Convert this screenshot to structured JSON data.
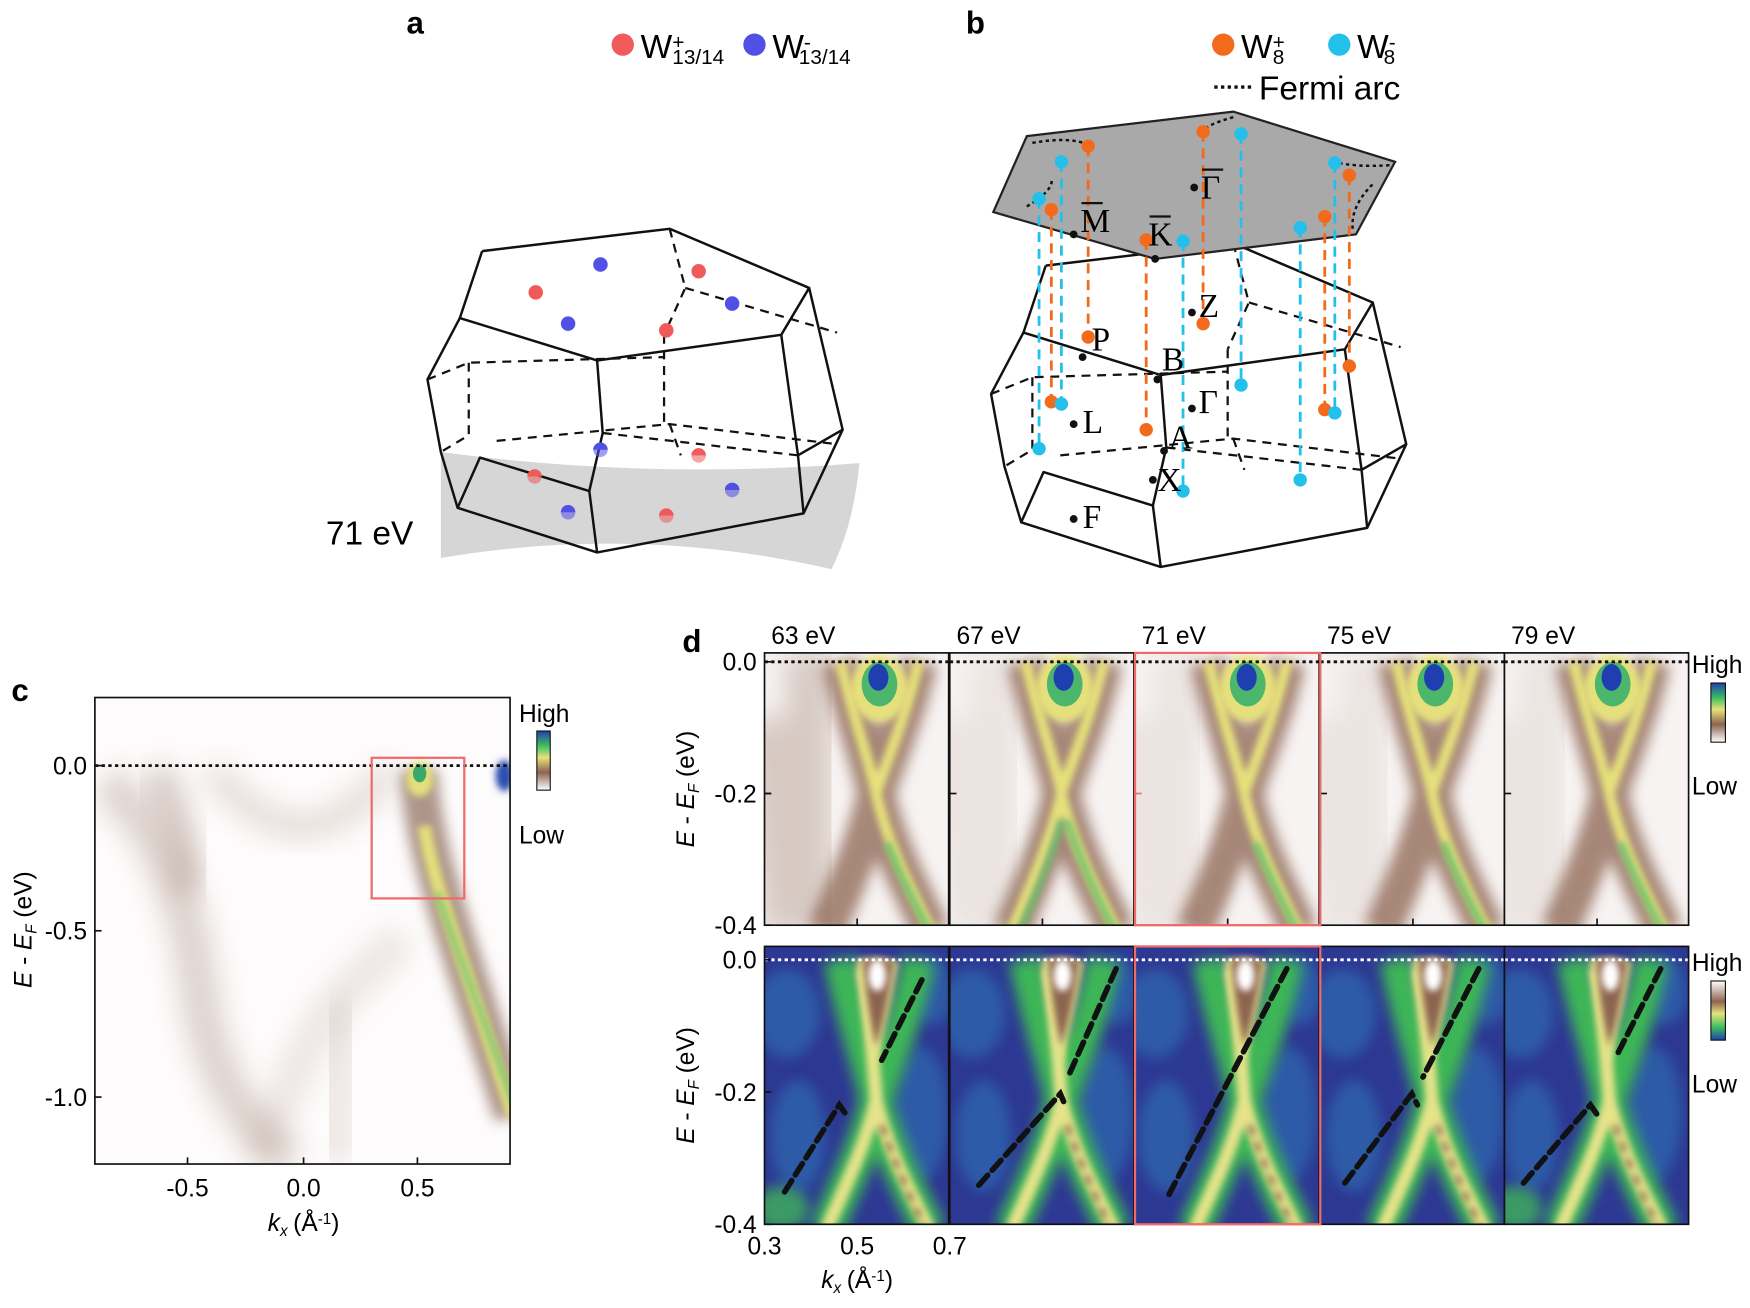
{
  "panel_a": {
    "label": "a",
    "legend": [
      {
        "symbol": "W",
        "sup": "+",
        "sub": "13/14",
        "color": "#f05a5a"
      },
      {
        "symbol": "W",
        "sup": "-",
        "sub": "13/14",
        "color": "#5050e6"
      }
    ],
    "photon_energy": "71 eV"
  },
  "panel_b": {
    "label": "b",
    "legend": [
      {
        "symbol": "W",
        "sup": "+",
        "sub": "8",
        "color": "#f26a1b"
      },
      {
        "symbol": "W",
        "sup": "-",
        "sub": "8",
        "color": "#22c0ea"
      }
    ],
    "fermi_arc": "Fermi arc",
    "points": [
      {
        "label": "Γ",
        "bar": true
      },
      {
        "label": "M",
        "bar": true
      },
      {
        "label": "K",
        "bar": true
      },
      {
        "label": "Z",
        "bar": false
      },
      {
        "label": "P",
        "bar": false
      },
      {
        "label": "B",
        "bar": false
      },
      {
        "label": "Γ",
        "bar": false
      },
      {
        "label": "L",
        "bar": false
      },
      {
        "label": "A",
        "bar": false
      },
      {
        "label": "X",
        "bar": false
      },
      {
        "label": "F",
        "bar": false
      }
    ]
  },
  "panel_c": {
    "label": "c",
    "y_label": {
      "symbol": "E",
      "operator": "-",
      "reference": "E",
      "reference_sub": "F",
      "unit": "(eV)"
    },
    "x_label": {
      "symbol": "k",
      "sub": "x",
      "unit": "(Å",
      "unit_sup": "-1",
      "unit_close": ")"
    },
    "yticks": [
      "0.0",
      "-0.5",
      "-1.0"
    ],
    "xticks": [
      "-0.5",
      "0.0",
      "0.5"
    ],
    "colorbar": {
      "high": "High",
      "low": "Low"
    }
  },
  "panel_d": {
    "label": "d",
    "photon_energies": [
      "63 eV",
      "67 eV",
      "71 eV",
      "75 eV",
      "79 eV"
    ],
    "y_label": {
      "symbol": "E",
      "operator": "-",
      "reference": "E",
      "reference_sub": "F",
      "unit": "(eV)"
    },
    "x_label": {
      "symbol": "k",
      "sub": "x",
      "unit": "(Å",
      "unit_sup": "-1",
      "unit_close": ")"
    },
    "yticks": [
      "0.0",
      "-0.2",
      "-0.4"
    ],
    "xticks": [
      "0.3",
      "0.5",
      "0.7"
    ],
    "colorbar_top": {
      "high": "High",
      "low": "Low"
    },
    "colorbar_bottom": {
      "high": "High",
      "low": "Low"
    }
  }
}
